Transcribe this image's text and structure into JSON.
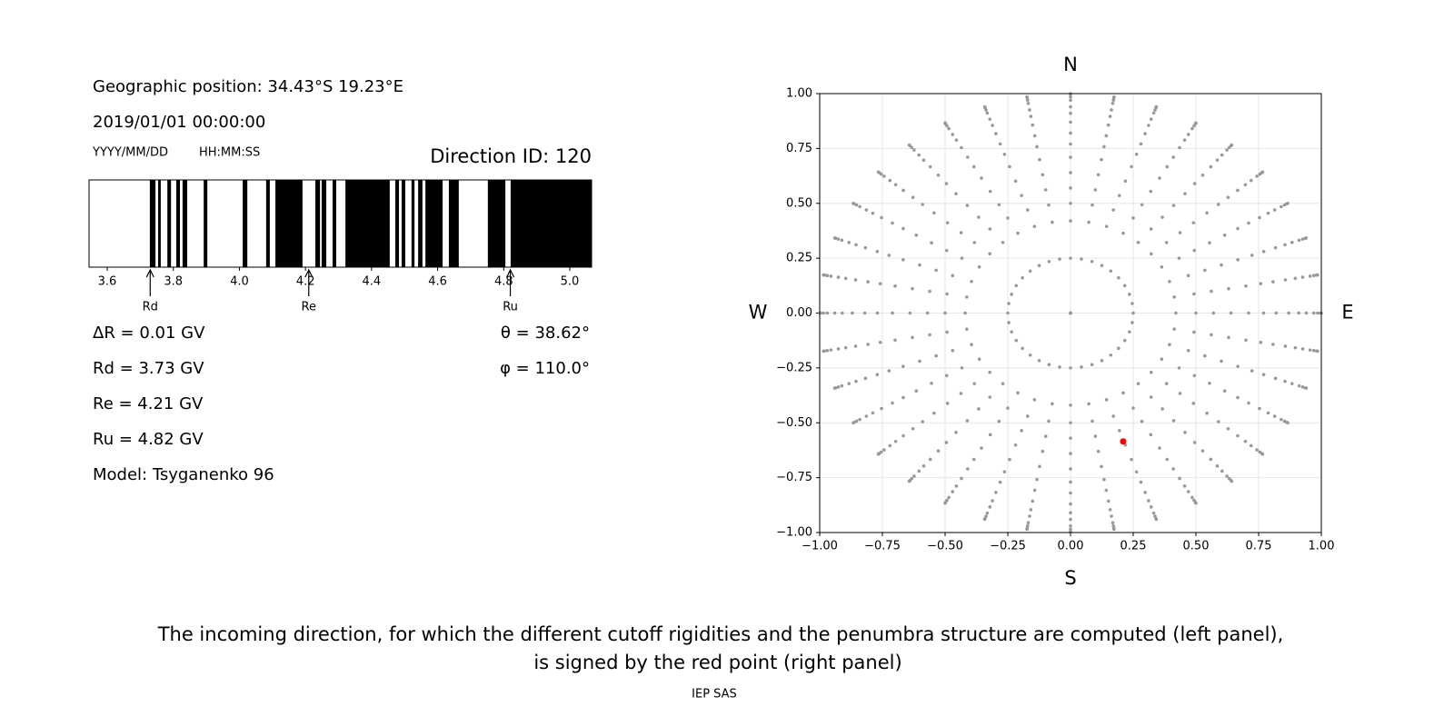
{
  "header": {
    "position": "Geographic position: 34.43°S 19.23°E",
    "datetime": "2019/01/01 00:00:00",
    "date_format": "YYYY/MM/DD",
    "time_format": "HH:MM:SS",
    "direction_id": "Direction ID: 120"
  },
  "results": {
    "left": [
      "ΔR = 0.01 GV",
      "Rd = 3.73 GV",
      "Re = 4.21 GV",
      "Ru = 4.82 GV",
      "Model: Tsyganenko 96"
    ],
    "right": [
      "θ = 38.62°",
      "φ = 110.0°"
    ]
  },
  "chart_data": [
    {
      "type": "penumbra",
      "xlim": [
        3.545,
        5.066
      ],
      "xticks": [
        3.6,
        3.8,
        {
          "value": 4,
          "label": "4.0"
        },
        4.2,
        4.4,
        4.6,
        4.8,
        {
          "value": 5,
          "label": "5.0"
        }
      ],
      "band_color": "#000000",
      "bands": [
        [
          3.729,
          3.746
        ],
        [
          3.754,
          3.762
        ],
        [
          3.782,
          3.793
        ],
        [
          3.809,
          3.82
        ],
        [
          3.828,
          3.842
        ],
        [
          3.892,
          3.903
        ],
        [
          4.01,
          4.024
        ],
        [
          4.081,
          4.092
        ],
        [
          4.109,
          4.191
        ],
        [
          4.23,
          4.244
        ],
        [
          4.249,
          4.263
        ],
        [
          4.282,
          4.293
        ],
        [
          4.321,
          4.455
        ],
        [
          4.472,
          4.483
        ],
        [
          4.491,
          4.502
        ],
        [
          4.521,
          4.53
        ],
        [
          4.541,
          4.554
        ],
        [
          4.563,
          4.615
        ],
        [
          4.634,
          4.664
        ],
        [
          4.752,
          4.805
        ],
        [
          4.821,
          5.066
        ]
      ],
      "markers": [
        {
          "label": "Rd",
          "value": 3.73
        },
        {
          "label": "Re",
          "value": 4.21
        },
        {
          "label": "Ru",
          "value": 4.82
        }
      ]
    },
    {
      "type": "scatter",
      "xlim": [
        -1,
        1
      ],
      "ylim": [
        -1,
        1
      ],
      "xticks": [
        {
          "value": -1,
          "label": "−1.00"
        },
        {
          "value": -0.75,
          "label": "−0.75"
        },
        {
          "value": -0.5,
          "label": "−0.50"
        },
        {
          "value": -0.25,
          "label": "−0.25"
        },
        {
          "value": 0,
          "label": "0.00"
        },
        {
          "value": 0.25,
          "label": "0.25"
        },
        {
          "value": 0.5,
          "label": "0.50"
        },
        {
          "value": 0.75,
          "label": "0.75"
        },
        {
          "value": 1,
          "label": "1.00"
        }
      ],
      "yticks": [
        {
          "value": -1,
          "label": "−1.00"
        },
        {
          "value": -0.75,
          "label": "−0.75"
        },
        {
          "value": -0.5,
          "label": "−0.50"
        },
        {
          "value": -0.25,
          "label": "−0.25"
        },
        {
          "value": 0,
          "label": "0.00"
        },
        {
          "value": 0.25,
          "label": "0.25"
        },
        {
          "value": 0.5,
          "label": "0.50"
        },
        {
          "value": 0.75,
          "label": "0.75"
        },
        {
          "value": 1,
          "label": "1.00"
        }
      ],
      "grid": true,
      "compass": {
        "north": "N",
        "south": "S",
        "west": "W",
        "east": "E"
      },
      "color": "#999999",
      "azimuths": [
        0,
        10,
        20,
        30,
        40,
        50,
        60,
        70,
        80,
        90,
        100,
        110,
        120,
        130,
        140,
        150,
        160,
        170,
        180,
        190,
        200,
        210,
        220,
        230,
        240,
        250,
        260,
        270,
        280,
        290,
        300,
        310,
        320,
        330,
        340,
        350
      ],
      "radii": [
        0,
        0.25,
        0.42,
        0.5,
        0.57,
        0.64,
        0.71,
        0.77,
        0.82,
        0.87,
        0.91,
        0.94,
        0.97,
        0.985,
        0.996,
        1.0
      ],
      "highlight": {
        "x": 0.21,
        "y": -0.585,
        "color": "#ff0000"
      }
    }
  ],
  "caption": [
    "The incoming direction, for which the different cutoff rigidities and the penumbra structure are computed (left panel),",
    "is signed by the red point (right panel)"
  ],
  "footer": "IEP SAS"
}
